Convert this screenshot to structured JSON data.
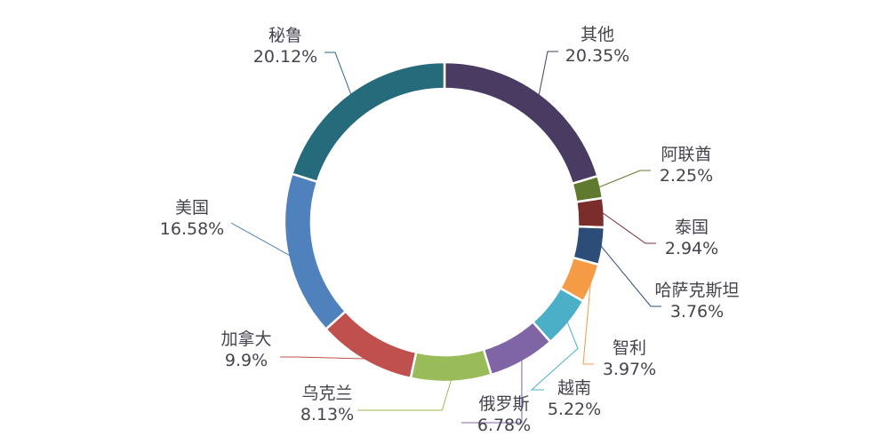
{
  "chart_data": {
    "type": "pie",
    "variant": "donut",
    "categories": [
      "其他",
      "阿联酋",
      "泰国",
      "哈萨克斯坦",
      "智利",
      "越南",
      "俄罗斯",
      "乌克兰",
      "加拿大",
      "美国",
      "秘鲁"
    ],
    "values": [
      20.35,
      2.25,
      2.94,
      3.76,
      3.97,
      5.22,
      6.78,
      8.13,
      9.9,
      16.58,
      20.12
    ],
    "value_labels": [
      "20.35%",
      "2.25%",
      "2.94%",
      "3.76%",
      "3.97%",
      "5.22%",
      "6.78%",
      "8.13%",
      "9.9%",
      "16.58%",
      "20.12%"
    ],
    "colors": [
      "#4a3b63",
      "#5f7a2e",
      "#7b2d2c",
      "#2c4d78",
      "#f59a45",
      "#4bafc8",
      "#7f65a6",
      "#9abb59",
      "#c0504d",
      "#4f81bd",
      "#256b7c"
    ],
    "start_angle": "12 o'clock",
    "direction": "clockwise",
    "legend": "none"
  }
}
